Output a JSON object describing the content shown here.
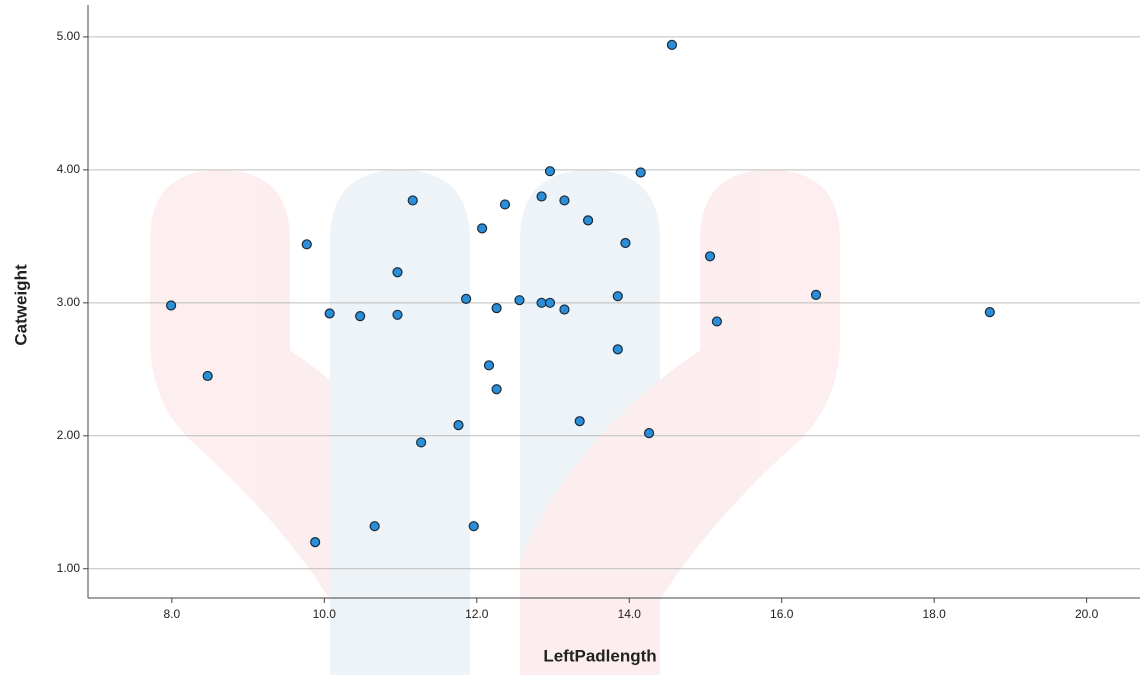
{
  "chart_data": {
    "type": "scatter",
    "x_label": "LeftPadlength",
    "y_label": "Catweight",
    "color": "#2a8fd8",
    "grid": true,
    "xlim": [
      6.9,
      20.7
    ],
    "ylim": [
      0.78,
      5.24
    ],
    "xticks": [
      {
        "value": 8,
        "label": "8.0"
      },
      {
        "value": 10,
        "label": "10.0"
      },
      {
        "value": 12,
        "label": "12.0"
      },
      {
        "value": 14,
        "label": "14.0"
      },
      {
        "value": 16,
        "label": "16.0"
      },
      {
        "value": 18,
        "label": "18.0"
      },
      {
        "value": 20,
        "label": "20.0"
      }
    ],
    "yticks": [
      {
        "value": 1,
        "label": "1.00"
      },
      {
        "value": 2,
        "label": "2.00"
      },
      {
        "value": 3,
        "label": "3.00"
      },
      {
        "value": 4,
        "label": "4.00"
      },
      {
        "value": 5,
        "label": "5.00"
      }
    ],
    "x": [
      7.99,
      8.47,
      9.77,
      9.88,
      10.07,
      10.47,
      10.66,
      10.96,
      10.96,
      11.16,
      11.27,
      11.76,
      11.86,
      11.96,
      12.07,
      12.16,
      12.26,
      12.26,
      12.37,
      12.56,
      12.85,
      12.85,
      12.96,
      12.96,
      13.15,
      13.15,
      13.35,
      13.46,
      13.85,
      13.85,
      13.95,
      14.15,
      14.26,
      14.56,
      15.06,
      15.15,
      16.45,
      18.73
    ],
    "y": [
      2.98,
      2.45,
      3.44,
      1.2,
      2.92,
      2.9,
      1.32,
      3.23,
      2.91,
      3.77,
      1.95,
      2.08,
      3.03,
      1.32,
      3.56,
      2.53,
      2.96,
      2.35,
      3.74,
      3.02,
      3.8,
      3.0,
      3.99,
      3.0,
      3.77,
      2.95,
      2.11,
      3.62,
      3.05,
      2.65,
      3.45,
      3.98,
      2.02,
      4.94,
      3.35,
      2.86,
      3.06,
      2.93
    ]
  }
}
